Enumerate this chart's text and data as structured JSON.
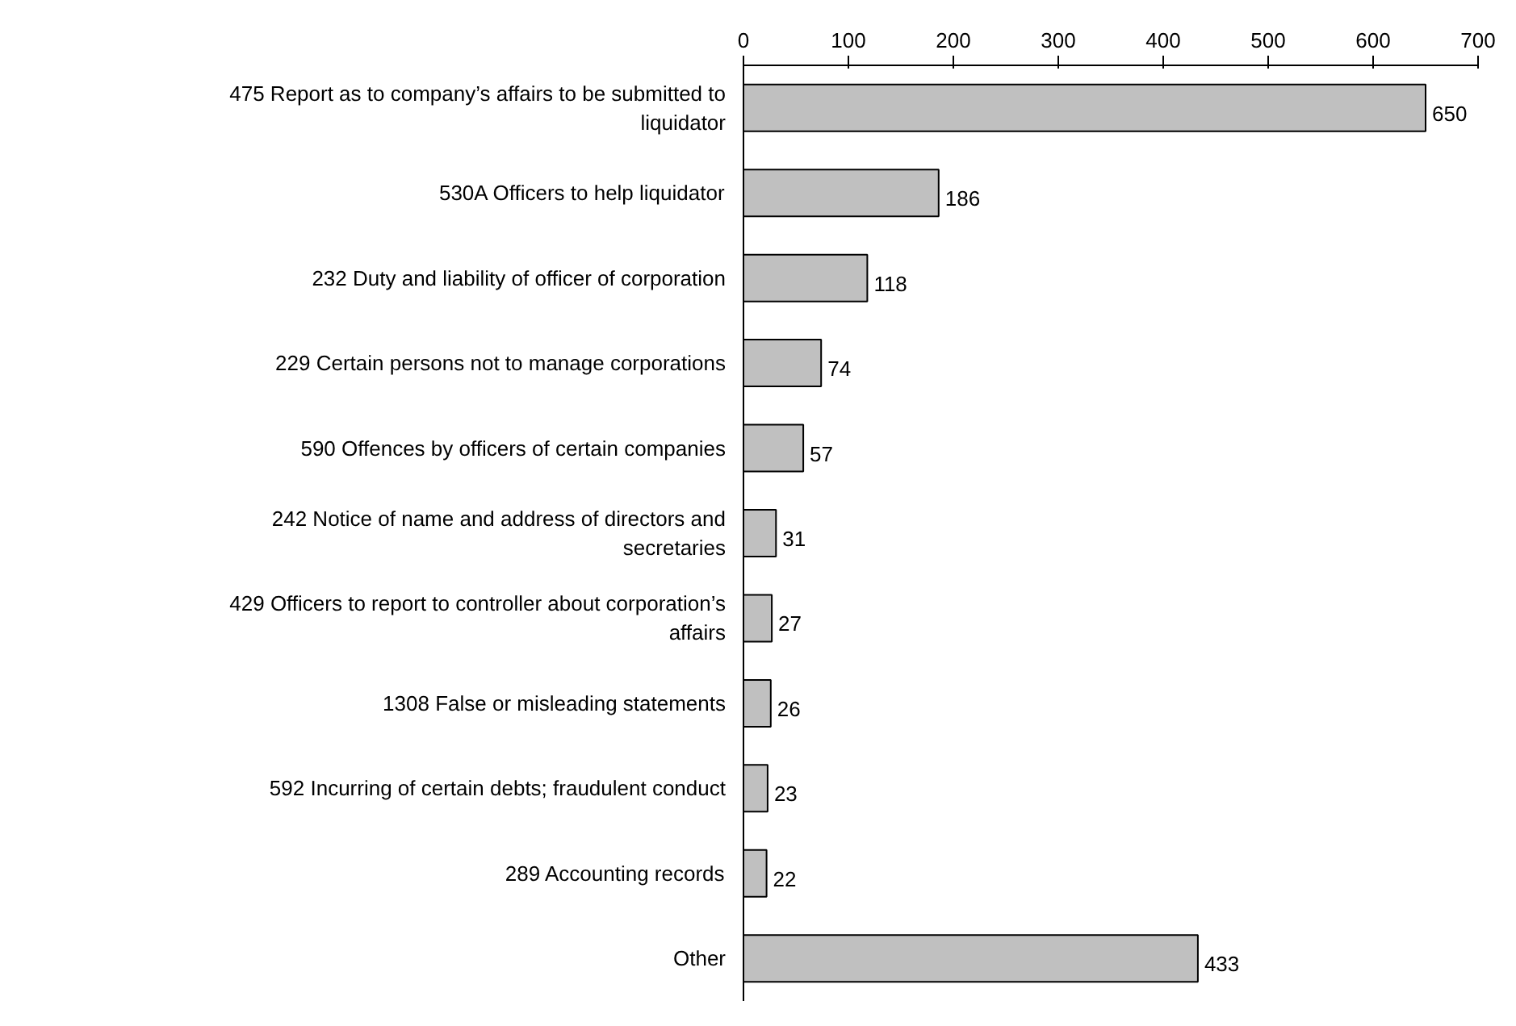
{
  "chart_data": {
    "type": "bar",
    "orientation": "horizontal",
    "categories": [
      "475 Report as to company’s affairs to be submitted to liquidator",
      "530A Officers to help liquidator",
      "232 Duty and liability of officer of corporation",
      "229 Certain persons not to manage corporations",
      "590 Offences by officers of certain companies",
      "242 Notice of name and address of directors and secretaries",
      "429 Officers to report to controller about corporation’s affairs",
      "1308 False or misleading statements",
      "592 Incurring of certain debts; fraudulent conduct",
      "289 Accounting records",
      "Other"
    ],
    "values": [
      650,
      186,
      118,
      74,
      57,
      31,
      27,
      26,
      23,
      22,
      433
    ],
    "color": "#c0c0c0",
    "xlim": [
      0,
      700
    ],
    "xticks": [
      0,
      100,
      200,
      300,
      400,
      500,
      600,
      700
    ],
    "data_labels": true,
    "grid": false
  }
}
